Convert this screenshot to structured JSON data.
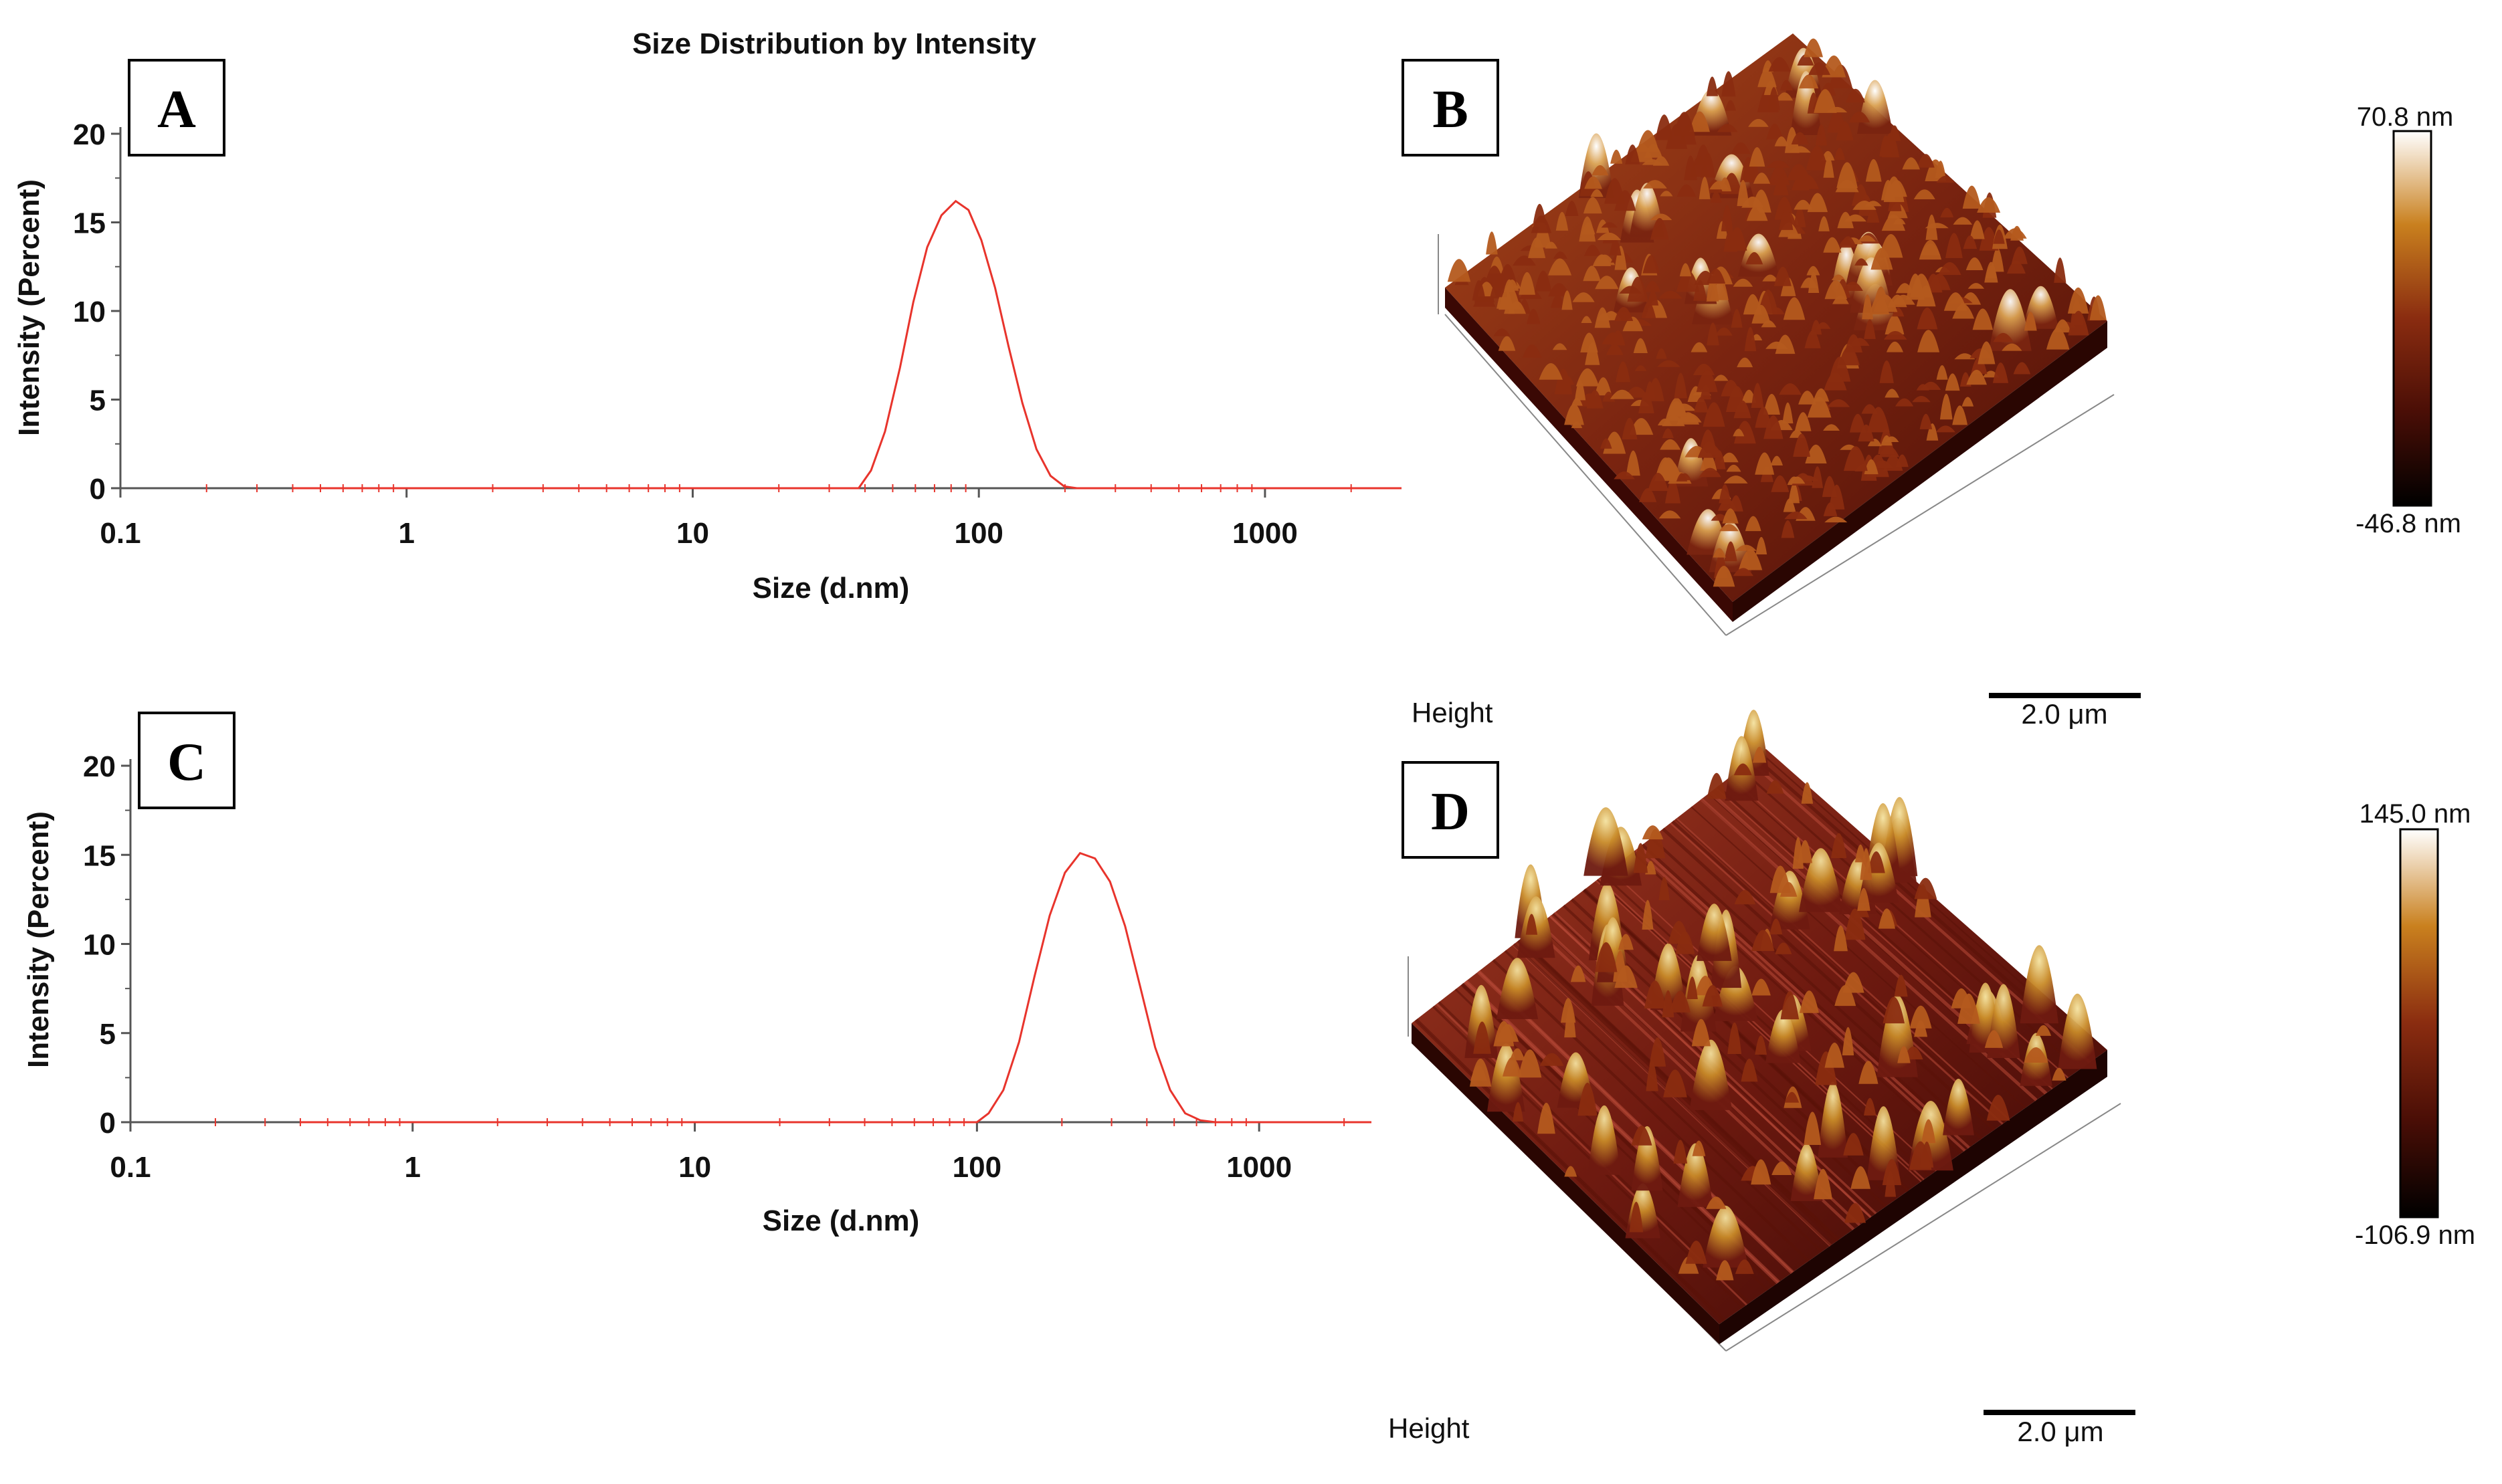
{
  "chart_data": [
    {
      "panel": "A",
      "type": "line",
      "title": "Size Distribution by Intensity",
      "xlabel": "Size (d.nm)",
      "ylabel": "Intensity (Percent)",
      "xscale": "log",
      "xlim": [
        0.1,
        3000
      ],
      "ylim": [
        0,
        20
      ],
      "xticks": [
        0.1,
        1,
        10,
        100,
        1000
      ],
      "xtick_labels": [
        "0.1",
        "1",
        "10",
        "100",
        "1000"
      ],
      "yticks": [
        0,
        5,
        10,
        15,
        20
      ],
      "ytick_labels": [
        "0",
        "5",
        "10",
        "15",
        "20"
      ],
      "grid": false,
      "line_color": "#e8342c",
      "series": [
        {
          "x": [
            0.4,
            20,
            38,
            42,
            47,
            53,
            59,
            66,
            74,
            83,
            92,
            102,
            114,
            127,
            142,
            159,
            178,
            199,
            220,
            3000
          ],
          "y": [
            0,
            0,
            0,
            1.0,
            3.2,
            6.8,
            10.5,
            13.6,
            15.4,
            16.2,
            15.7,
            14.0,
            11.3,
            8.0,
            4.8,
            2.2,
            0.7,
            0.1,
            0,
            0
          ]
        }
      ]
    },
    {
      "panel": "C",
      "type": "line",
      "title": "",
      "xlabel": "Size (d.nm)",
      "ylabel": "Intensity (Percent)",
      "xscale": "log",
      "xlim": [
        0.1,
        2500
      ],
      "ylim": [
        0,
        20
      ],
      "xticks": [
        0.1,
        1,
        10,
        100,
        1000
      ],
      "xtick_labels": [
        "0.1",
        "1",
        "10",
        "100",
        "1000"
      ],
      "yticks": [
        0,
        5,
        10,
        15,
        20
      ],
      "ytick_labels": [
        "0",
        "5",
        "10",
        "15",
        "20"
      ],
      "grid": false,
      "line_color": "#e8342c",
      "series": [
        {
          "x": [
            0.4,
            50,
            100,
            110,
            124,
            141,
            160,
            181,
            205,
            232,
            262,
            296,
            335,
            379,
            428,
            484,
            547,
            620,
            700,
            2500
          ],
          "y": [
            0,
            0,
            0,
            0.5,
            1.8,
            4.5,
            8.2,
            11.6,
            14.0,
            15.1,
            14.8,
            13.5,
            11.0,
            7.6,
            4.2,
            1.8,
            0.5,
            0.1,
            0,
            0
          ]
        }
      ]
    }
  ],
  "panels": {
    "a_label": "A",
    "b_label": "B",
    "c_label": "C",
    "d_label": "D"
  },
  "afm_b": {
    "scale_max": "70.8 nm",
    "scale_min": "-46.8 nm",
    "channel": "Height",
    "scalebar": "2.0 μm"
  },
  "afm_d": {
    "scale_max": "145.0 nm",
    "scale_min": "-106.9 nm",
    "channel": "Height",
    "scalebar": "2.0 μm"
  },
  "colors": {
    "afm_colormap": [
      "#000000",
      "#5a1208",
      "#9a3a14",
      "#c9801e",
      "#e8c890",
      "#ffffff"
    ],
    "afm_surface_b": "#8a2e12",
    "afm_surface_d": "#7a1e10"
  }
}
